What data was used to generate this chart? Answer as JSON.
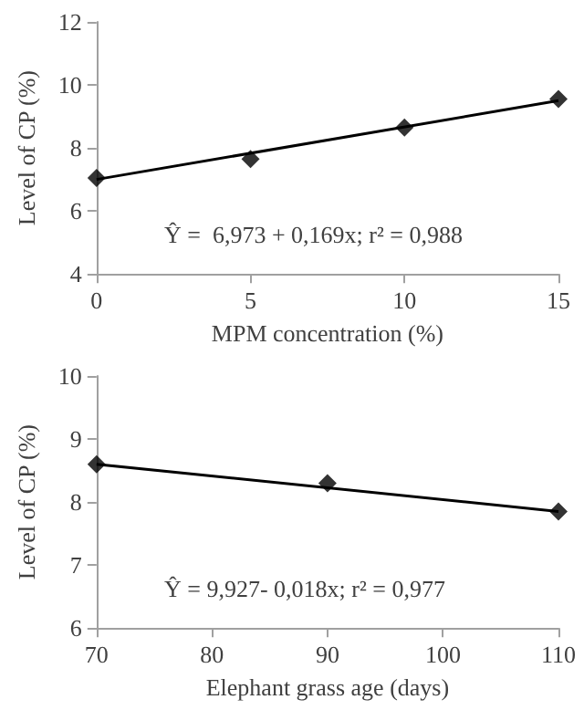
{
  "chart_data": [
    {
      "type": "scatter",
      "xlabel": "MPM concentration (%)",
      "ylabel": "Level of CP (%)",
      "xlim": [
        0,
        15
      ],
      "xticks": [
        0,
        5,
        10,
        15
      ],
      "ylim": [
        4,
        12
      ],
      "yticks": [
        4,
        6,
        8,
        10,
        12
      ],
      "grid": false,
      "annotations": [
        "Ŷ =  6,973 + 0,169x; r² = 0,988"
      ],
      "series": [
        {
          "marker": "diamond",
          "color": "#000000",
          "x": [
            0,
            5,
            10,
            15
          ],
          "values": [
            7.05,
            7.65,
            8.65,
            9.55
          ]
        },
        {
          "type": "line",
          "marker": "none",
          "line_style": "solid",
          "color": "#000000",
          "x": [
            0,
            15
          ],
          "values": [
            7.0,
            9.5
          ]
        }
      ]
    },
    {
      "type": "scatter",
      "xlabel": "Elephant grass age (days)",
      "ylabel": "Level of CP (%)",
      "xlim": [
        70,
        110
      ],
      "xticks": [
        70,
        80,
        90,
        100,
        110
      ],
      "ylim": [
        6,
        10
      ],
      "yticks": [
        6,
        7,
        8,
        9,
        10
      ],
      "grid": false,
      "annotations": [
        "Ŷ = 9,927- 0,018x; r² = 0,977"
      ],
      "series": [
        {
          "marker": "diamond",
          "color": "#000000",
          "x": [
            70,
            90,
            110
          ],
          "values": [
            8.6,
            8.3,
            7.85
          ]
        },
        {
          "type": "line",
          "marker": "none",
          "line_style": "solid",
          "color": "#000000",
          "x": [
            70,
            110
          ],
          "values": [
            8.6,
            7.85
          ]
        }
      ]
    }
  ]
}
